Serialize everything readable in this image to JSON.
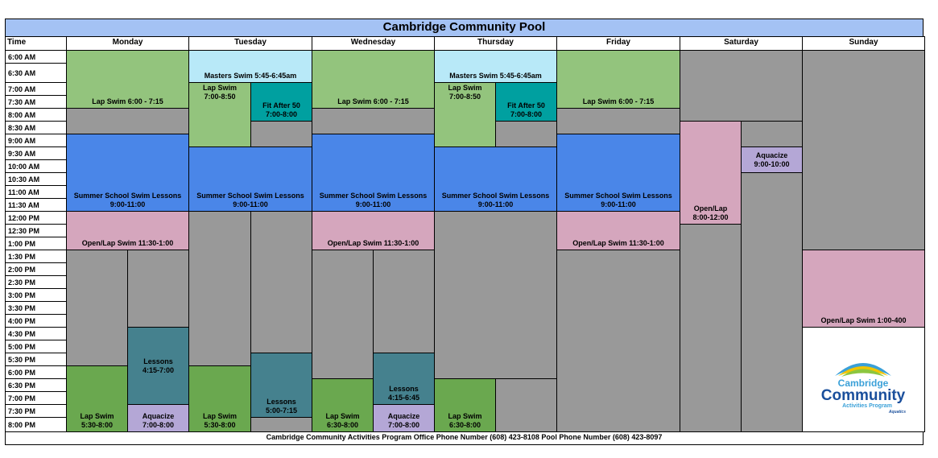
{
  "title": "Cambridge Community Pool",
  "time_header": "Time",
  "days": [
    "Monday",
    "Tuesday",
    "Wednesday",
    "Thursday",
    "Friday",
    "Saturday",
    "Sunday"
  ],
  "times": [
    "6:00 AM",
    "6:30 AM",
    "7:00 AM",
    "7:30 AM",
    "8:00 AM",
    "8:30 AM",
    "9:00 AM",
    "9:30 AM",
    "10:00 AM",
    "10:30 AM",
    "11:00 AM",
    "11:30 AM",
    "12:00 PM",
    "12:30 PM",
    "1:00 PM",
    "1:30 PM",
    "2:00 PM",
    "2:30 PM",
    "3:00 PM",
    "3:30 PM",
    "4:00 PM",
    "4:30 PM",
    "5:00 PM",
    "5:30 PM",
    "6:00 PM",
    "6:30 PM",
    "7:00 PM",
    "7:30 PM",
    "8:00 PM"
  ],
  "colors": {
    "gray": "#999999",
    "light_green": "#93c47d",
    "green": "#6aa84f",
    "teal_green": "#00a0a0",
    "teal": "#45818e",
    "light_blue": "#b8e9f8",
    "blue": "#4a86e8",
    "pink": "#d5a6bd",
    "purple": "#b4a7d6",
    "header": "#a4c2f4"
  },
  "events": [
    {
      "day": 0,
      "lane": "full",
      "start": 0,
      "end": 4,
      "color": "light_green",
      "lines": [
        "Lap Swim 6:00 - 7:15"
      ],
      "align": "bottom"
    },
    {
      "day": 0,
      "lane": "full",
      "start": 4,
      "end": 6,
      "color": "gray",
      "lines": []
    },
    {
      "day": 0,
      "lane": "full",
      "start": 6,
      "end": 12,
      "color": "blue",
      "lines": [
        "Summer School Swim Lessons",
        "9:00-11:00"
      ],
      "align": "bottom"
    },
    {
      "day": 0,
      "lane": "full",
      "start": 12,
      "end": 15,
      "color": "pink",
      "lines": [
        "Open/Lap Swim 11:30-1:00"
      ],
      "align": "bottom"
    },
    {
      "day": 0,
      "lane": "left",
      "start": 15,
      "end": 24,
      "color": "gray",
      "lines": []
    },
    {
      "day": 0,
      "lane": "right",
      "start": 15,
      "end": 21,
      "color": "gray",
      "lines": []
    },
    {
      "day": 0,
      "lane": "left",
      "start": 24,
      "end": 29,
      "color": "green",
      "lines": [
        "Lap Swim",
        "5:30-8:00"
      ],
      "align": "bottom"
    },
    {
      "day": 0,
      "lane": "right",
      "start": 21,
      "end": 27,
      "color": "teal",
      "lines": [
        "Lessons",
        "4:15-7:00"
      ]
    },
    {
      "day": 0,
      "lane": "right",
      "start": 27,
      "end": 29,
      "color": "purple",
      "lines": [
        "Aquacize",
        "7:00-8:00"
      ],
      "align": "bottom"
    },
    {
      "day": 0,
      "lane": "full",
      "start": 29,
      "end": 30,
      "color": "gray",
      "lines": []
    },
    {
      "day": 1,
      "lane": "full",
      "start": 0,
      "end": 2,
      "color": "light_blue",
      "lines": [
        "Masters Swim 5:45-6:45am"
      ],
      "align": "bottom"
    },
    {
      "day": 1,
      "lane": "left",
      "start": 2,
      "end": 7,
      "color": "light_green",
      "lines": [
        "Lap Swim",
        "7:00-8:50"
      ],
      "align": "top"
    },
    {
      "day": 1,
      "lane": "right",
      "start": 2,
      "end": 5,
      "color": "teal_green",
      "lines": [
        "Fit After 50",
        "7:00-8:00"
      ],
      "align": "bottom"
    },
    {
      "day": 1,
      "lane": "right",
      "start": 5,
      "end": 7,
      "color": "gray",
      "lines": []
    },
    {
      "day": 1,
      "lane": "full",
      "start": 7,
      "end": 12,
      "color": "blue",
      "lines": [
        "Summer School Swim Lessons",
        "9:00-11:00"
      ],
      "align": "bottom"
    },
    {
      "day": 1,
      "lane": "left",
      "start": 12,
      "end": 24,
      "color": "gray",
      "lines": []
    },
    {
      "day": 1,
      "lane": "right",
      "start": 12,
      "end": 23,
      "color": "gray",
      "lines": []
    },
    {
      "day": 1,
      "lane": "left",
      "start": 24,
      "end": 29,
      "color": "green",
      "lines": [
        "Lap Swim",
        "5:30-8:00"
      ],
      "align": "bottom"
    },
    {
      "day": 1,
      "lane": "right",
      "start": 23,
      "end": 28,
      "color": "teal",
      "lines": [
        "Lessons",
        "5:00-7:15"
      ],
      "align": "bottom"
    },
    {
      "day": 1,
      "lane": "right",
      "start": 28,
      "end": 30,
      "color": "gray",
      "lines": []
    },
    {
      "day": 1,
      "lane": "left",
      "start": 29,
      "end": 30,
      "color": "gray",
      "lines": []
    },
    {
      "day": 2,
      "lane": "full",
      "start": 0,
      "end": 4,
      "color": "light_green",
      "lines": [
        "Lap Swim 6:00 - 7:15"
      ],
      "align": "bottom"
    },
    {
      "day": 2,
      "lane": "full",
      "start": 4,
      "end": 6,
      "color": "gray",
      "lines": []
    },
    {
      "day": 2,
      "lane": "full",
      "start": 6,
      "end": 12,
      "color": "blue",
      "lines": [
        "Summer School Swim Lessons",
        "9:00-11:00"
      ],
      "align": "bottom"
    },
    {
      "day": 2,
      "lane": "full",
      "start": 12,
      "end": 15,
      "color": "pink",
      "lines": [
        "Open/Lap Swim 11:30-1:00"
      ],
      "align": "bottom"
    },
    {
      "day": 2,
      "lane": "left",
      "start": 15,
      "end": 25,
      "color": "gray",
      "lines": []
    },
    {
      "day": 2,
      "lane": "right",
      "start": 15,
      "end": 23,
      "color": "gray",
      "lines": []
    },
    {
      "day": 2,
      "lane": "left",
      "start": 25,
      "end": 29,
      "color": "green",
      "lines": [
        "Lap Swim",
        "6:30-8:00"
      ],
      "align": "bottom"
    },
    {
      "day": 2,
      "lane": "right",
      "start": 23,
      "end": 27,
      "color": "teal",
      "lines": [
        "Lessons",
        "4:15-6:45"
      ],
      "align": "bottom"
    },
    {
      "day": 2,
      "lane": "right",
      "start": 27,
      "end": 29,
      "color": "purple",
      "lines": [
        "Aquacize",
        "7:00-8:00"
      ],
      "align": "bottom"
    },
    {
      "day": 2,
      "lane": "full",
      "start": 29,
      "end": 30,
      "color": "gray",
      "lines": []
    },
    {
      "day": 3,
      "lane": "full",
      "start": 0,
      "end": 2,
      "color": "light_blue",
      "lines": [
        "Masters Swim 5:45-6:45am"
      ],
      "align": "bottom"
    },
    {
      "day": 3,
      "lane": "left",
      "start": 2,
      "end": 7,
      "color": "light_green",
      "lines": [
        "Lap Swim",
        "7:00-8:50"
      ],
      "align": "top"
    },
    {
      "day": 3,
      "lane": "right",
      "start": 2,
      "end": 5,
      "color": "teal_green",
      "lines": [
        "Fit After 50",
        "7:00-8:00"
      ],
      "align": "bottom"
    },
    {
      "day": 3,
      "lane": "right",
      "start": 5,
      "end": 7,
      "color": "gray",
      "lines": []
    },
    {
      "day": 3,
      "lane": "full",
      "start": 7,
      "end": 12,
      "color": "blue",
      "lines": [
        "Summer School Swim Lessons",
        "9:00-11:00"
      ],
      "align": "bottom"
    },
    {
      "day": 3,
      "lane": "full",
      "start": 12,
      "end": 25,
      "color": "gray",
      "lines": []
    },
    {
      "day": 3,
      "lane": "left",
      "start": 25,
      "end": 29,
      "color": "green",
      "lines": [
        "Lap Swim",
        "6:30-8:00"
      ],
      "align": "bottom"
    },
    {
      "day": 3,
      "lane": "right",
      "start": 25,
      "end": 30,
      "color": "gray",
      "lines": []
    },
    {
      "day": 3,
      "lane": "left",
      "start": 29,
      "end": 30,
      "color": "gray",
      "lines": []
    },
    {
      "day": 4,
      "lane": "full",
      "start": 0,
      "end": 4,
      "color": "light_green",
      "lines": [
        "Lap Swim 6:00 - 7:15"
      ],
      "align": "bottom"
    },
    {
      "day": 4,
      "lane": "full",
      "start": 4,
      "end": 6,
      "color": "gray",
      "lines": []
    },
    {
      "day": 4,
      "lane": "full",
      "start": 6,
      "end": 12,
      "color": "blue",
      "lines": [
        "Summer School Swim Lessons",
        "9:00-11:00"
      ],
      "align": "bottom"
    },
    {
      "day": 4,
      "lane": "full",
      "start": 12,
      "end": 15,
      "color": "pink",
      "lines": [
        "Open/Lap Swim 11:30-1:00"
      ],
      "align": "bottom"
    },
    {
      "day": 4,
      "lane": "full",
      "start": 15,
      "end": 30,
      "color": "gray",
      "lines": []
    },
    {
      "day": 5,
      "lane": "full",
      "start": 0,
      "end": 5,
      "color": "gray",
      "lines": []
    },
    {
      "day": 5,
      "lane": "left",
      "start": 5,
      "end": 13,
      "color": "pink",
      "lines": [
        "Open/Lap",
        "8:00-12:00"
      ],
      "align": "bottom"
    },
    {
      "day": 5,
      "lane": "right",
      "start": 5,
      "end": 7,
      "color": "gray",
      "lines": []
    },
    {
      "day": 5,
      "lane": "right",
      "start": 7,
      "end": 9,
      "color": "purple",
      "lines": [
        "Aquacize",
        "9:00-10:00"
      ]
    },
    {
      "day": 5,
      "lane": "right",
      "start": 9,
      "end": 30,
      "color": "gray",
      "lines": []
    },
    {
      "day": 5,
      "lane": "left",
      "start": 13,
      "end": 30,
      "color": "gray",
      "lines": []
    },
    {
      "day": 6,
      "lane": "full",
      "start": 0,
      "end": 15,
      "color": "gray",
      "lines": []
    },
    {
      "day": 6,
      "lane": "full",
      "start": 15,
      "end": 21,
      "color": "pink",
      "lines": [
        "Open/Lap Swim 1:00-400"
      ],
      "align": "bottom"
    }
  ],
  "logo": {
    "line1": "Cambridge",
    "line2": "Community",
    "line3": "Activities Program",
    "line4": "Aquatics",
    "colors": {
      "blue": "#1a4f9c",
      "green": "#8cc63f",
      "yellow": "#f2c500",
      "light_blue": "#3aa0d8"
    }
  },
  "footer": "Cambridge Community Activities Program Office Phone Number (608) 423-8108 Pool Phone Number (608) 423-8097"
}
